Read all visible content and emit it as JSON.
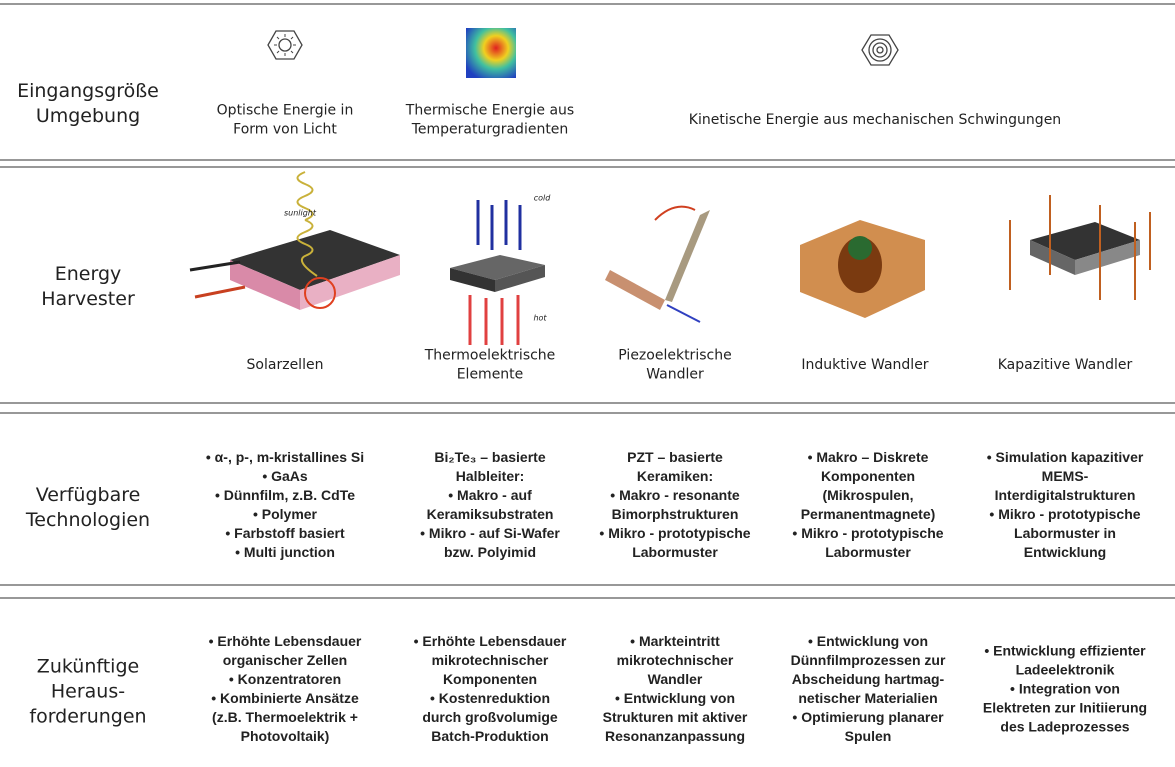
{
  "rows": [
    {
      "label": [
        "Eingangsgröße",
        "Umgebung"
      ],
      "items": [
        {
          "lines": [
            "Optische Energie in",
            "Form von Licht"
          ]
        },
        {
          "lines": [
            "Thermische Energie aus",
            "Temperaturgradienten"
          ]
        },
        {
          "lines": [
            "Kinetische Energie aus mechanischen Schwingungen"
          ]
        }
      ]
    },
    {
      "label": [
        "Energy",
        "Harvester"
      ],
      "items": [
        {
          "lines": [
            "Solarzellen"
          ]
        },
        {
          "lines": [
            "Thermoelektrische",
            "Elemente"
          ]
        },
        {
          "lines": [
            "Piezoelektrische",
            "Wandler"
          ]
        },
        {
          "lines": [
            "Induktive Wandler"
          ]
        },
        {
          "lines": [
            "Kapazitive Wandler"
          ]
        }
      ]
    },
    {
      "label": [
        "Verfügbare",
        "Technologien"
      ],
      "items": [
        {
          "lines": [
            "• α-, p-, m-kristallines Si",
            "• GaAs",
            "• Dünnfilm, z.B. CdTe",
            "• Polymer",
            "• Farbstoff basiert",
            "• Multi junction"
          ]
        },
        {
          "lines": [
            "Bi₂Te₃ – basierte",
            "Halbleiter:",
            "• Makro - auf",
            "Keramiksubstraten",
            "• Mikro - auf Si-Wafer",
            "bzw. Polyimid"
          ]
        },
        {
          "lines": [
            "PZT – basierte",
            "Keramiken:",
            "• Makro - resonante",
            "Bimorphstrukturen",
            "• Mikro - prototypische",
            "Labormuster"
          ]
        },
        {
          "lines": [
            "• Makro – Diskrete",
            "Komponenten",
            "(Mikrospulen,",
            "Permanentmagnete)",
            "• Mikro - prototypische",
            "Labormuster"
          ]
        },
        {
          "lines": [
            "• Simulation kapazitiver",
            "MEMS-",
            "Interdigitalstrukturen",
            "• Mikro - prototypische",
            "Labormuster in",
            "Entwicklung"
          ]
        }
      ]
    },
    {
      "label": [
        "Zukünftige",
        "Heraus-",
        "forderungen"
      ],
      "items": [
        {
          "lines": [
            "• Erhöhte Lebensdauer",
            "organischer Zellen",
            "• Konzentratoren",
            "• Kombinierte Ansätze",
            "(z.B. Thermoelektrik +",
            "Photovoltaik)"
          ]
        },
        {
          "lines": [
            "• Erhöhte Lebensdauer",
            "mikrotechnischer",
            "Komponenten",
            "• Kostenreduktion",
            "durch großvolumige",
            "Batch-Produktion"
          ]
        },
        {
          "lines": [
            "• Markteintritt",
            "mikrotechnischer",
            "Wandler",
            "• Entwicklung von",
            "Strukturen mit aktiver",
            "Resonanzanpassung"
          ]
        },
        {
          "lines": [
            "• Entwicklung von",
            "Dünnfilmprozessen zur",
            "Abscheidung hartmag-",
            "netischer Materialien",
            "• Optimierung planarer",
            "Spulen"
          ]
        },
        {
          "lines": [
            "• Entwicklung effizienter",
            "Ladeelektronik",
            "• Integration von",
            "Elektreten zur Initiierung",
            "des Ladeprozesses"
          ]
        }
      ]
    }
  ],
  "illustration_labels": {
    "sunlight": "sunlight",
    "cold": "cold",
    "hot": "hot"
  }
}
